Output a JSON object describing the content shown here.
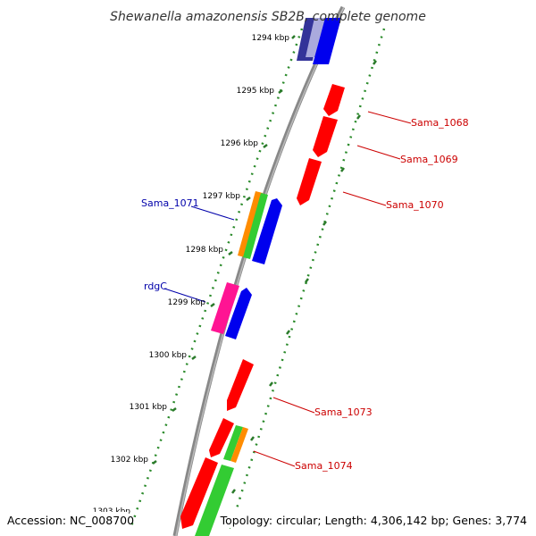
{
  "title": "Shewanella amazonensis SB2B, complete genome",
  "footer": {
    "accession": "Accession: NC_008700",
    "topology": "Topology: circular; Length: 4,306,142 bp; Genes: 3,774"
  },
  "colors": {
    "backbone": "#888888",
    "ruler_dots": "#2a8a2a",
    "ruler_ticks": "#2a7a2a",
    "label_red": "#cc0000",
    "label_blue": "#0000aa",
    "gene_red": "#ff0000",
    "gene_blue": "#0000ee",
    "gene_navy": "#333399",
    "gene_lavender": "#aaaadd",
    "gene_orange": "#ff8c00",
    "gene_green": "#33cc33",
    "gene_magenta": "#ff1493"
  },
  "ruler_labels": [
    {
      "id": "1294",
      "text": "1294 kbp"
    },
    {
      "id": "1295",
      "text": "1295 kbp"
    },
    {
      "id": "1296",
      "text": "1296 kbp"
    },
    {
      "id": "1297",
      "text": "1297 kbp"
    },
    {
      "id": "1298",
      "text": "1298 kbp"
    },
    {
      "id": "1299",
      "text": "1299 kbp"
    },
    {
      "id": "1300",
      "text": "1300 kbp"
    },
    {
      "id": "1301",
      "text": "1301 kbp"
    },
    {
      "id": "1302",
      "text": "1302 kbp"
    },
    {
      "id": "1303",
      "text": "1303 kbp"
    }
  ],
  "gene_labels": [
    {
      "id": "sama-1068",
      "text": "Sama_1068",
      "color": "#cc0000"
    },
    {
      "id": "sama-1069",
      "text": "Sama_1069",
      "color": "#cc0000"
    },
    {
      "id": "sama-1070",
      "text": "Sama_1070",
      "color": "#cc0000"
    },
    {
      "id": "sama-1071",
      "text": "Sama_1071",
      "color": "#0000aa"
    },
    {
      "id": "rdgc",
      "text": "rdgC",
      "color": "#0000aa"
    },
    {
      "id": "sama-1073",
      "text": "Sama_1073",
      "color": "#cc0000"
    },
    {
      "id": "sama-1074",
      "text": "Sama_1074",
      "color": "#cc0000"
    }
  ],
  "genes": [
    {
      "id": "g-navy-top",
      "color": "#333399"
    },
    {
      "id": "g-lavender-top",
      "color": "#aaaadd"
    },
    {
      "id": "g-blue-top",
      "color": "#0000ee"
    },
    {
      "id": "g-red-1068",
      "color": "#ff0000"
    },
    {
      "id": "g-red-1069",
      "color": "#ff0000"
    },
    {
      "id": "g-red-1070",
      "color": "#ff0000"
    },
    {
      "id": "g-orange-1071",
      "color": "#ff8c00"
    },
    {
      "id": "g-green-1071",
      "color": "#33cc33"
    },
    {
      "id": "g-blue-1071",
      "color": "#0000ee"
    },
    {
      "id": "g-magenta-rdgc",
      "color": "#ff1493"
    },
    {
      "id": "g-blue-rdgc",
      "color": "#0000ee"
    },
    {
      "id": "g-red-1073",
      "color": "#ff0000"
    },
    {
      "id": "g-red-a",
      "color": "#ff0000"
    },
    {
      "id": "g-green-1074",
      "color": "#33cc33"
    },
    {
      "id": "g-orange-1074",
      "color": "#ff8c00"
    },
    {
      "id": "g-red-b",
      "color": "#ff0000"
    },
    {
      "id": "g-green-b",
      "color": "#33cc33"
    }
  ]
}
